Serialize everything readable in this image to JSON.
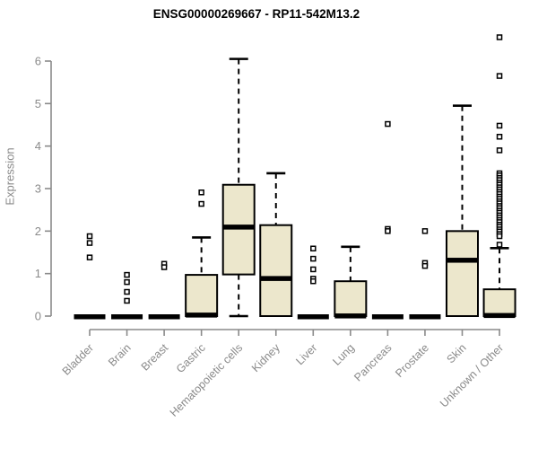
{
  "window": {
    "background": "#ffffff"
  },
  "chart_data": {
    "type": "boxplot",
    "title": "ENSG00000269667 - RP11-542M13.2",
    "ylabel": "Expression",
    "xlabel": "",
    "grid": false,
    "legend": null,
    "y_axis": {
      "min": 0,
      "max": 6,
      "ticks": [
        0,
        1,
        2,
        3,
        4,
        5,
        6
      ]
    },
    "categories": [
      "Bladder",
      "Brain",
      "Breast",
      "Gastric",
      "Hematopoietic cells",
      "Kidney",
      "Liver",
      "Lung",
      "Pancreas",
      "Prostate",
      "Skin",
      "Unknown / Other"
    ],
    "boxes": [
      {
        "category": "Bladder",
        "low": 0,
        "q1": 0,
        "median": 0,
        "q3": 0,
        "high": 0,
        "outliers": [
          1.88,
          1.72,
          1.38
        ]
      },
      {
        "category": "Brain",
        "low": 0,
        "q1": 0,
        "median": 0,
        "q3": 0,
        "high": 0,
        "outliers": [
          0.97,
          0.8,
          0.57,
          0.36
        ]
      },
      {
        "category": "Breast",
        "low": 0,
        "q1": 0,
        "median": 0,
        "q3": 0,
        "high": 0,
        "outliers": [
          1.23,
          1.15
        ]
      },
      {
        "category": "Gastric",
        "low": 0,
        "q1": 0,
        "median": 0.04,
        "q3": 0.97,
        "high": 1.85,
        "outliers": [
          2.91,
          2.64
        ]
      },
      {
        "category": "Hematopoietic cells",
        "low": 0,
        "q1": 0.98,
        "median": 2.11,
        "q3": 3.09,
        "high": 6.05,
        "outliers": []
      },
      {
        "category": "Kidney",
        "low": 0,
        "q1": 0,
        "median": 0.9,
        "q3": 2.14,
        "high": 3.36,
        "outliers": []
      },
      {
        "category": "Liver",
        "low": 0,
        "q1": 0,
        "median": 0,
        "q3": 0,
        "high": 0,
        "outliers": [
          1.59,
          1.35,
          1.1,
          0.88,
          0.82
        ]
      },
      {
        "category": "Lung",
        "low": 0,
        "q1": 0,
        "median": 0.02,
        "q3": 0.82,
        "high": 1.63,
        "outliers": []
      },
      {
        "category": "Pancreas",
        "low": 0,
        "q1": 0,
        "median": 0,
        "q3": 0,
        "high": 0,
        "outliers": [
          4.52,
          2.05,
          2.0
        ]
      },
      {
        "category": "Prostate",
        "low": 0,
        "q1": 0,
        "median": 0,
        "q3": 0,
        "high": 0,
        "outliers": [
          2.0,
          1.25,
          1.18
        ]
      },
      {
        "category": "Skin",
        "low": 0,
        "q1": 0,
        "median": 1.33,
        "q3": 2.0,
        "high": 4.95,
        "outliers": []
      },
      {
        "category": "Unknown / Other",
        "low": 0,
        "q1": 0,
        "median": 0.03,
        "q3": 0.63,
        "high": 1.6,
        "outliers": [
          6.56,
          5.65,
          4.48,
          4.22,
          3.9,
          3.36,
          3.31,
          3.25,
          3.2,
          3.14,
          3.09,
          3.03,
          2.98,
          2.92,
          2.87,
          2.81,
          2.76,
          2.7,
          2.65,
          2.59,
          2.54,
          2.48,
          2.43,
          2.37,
          2.32,
          2.26,
          2.21,
          2.15,
          2.1,
          2.04,
          1.99,
          1.93,
          1.88,
          1.68
        ]
      }
    ],
    "colors": {
      "box_fill": "#ECE7CC",
      "box_border": "#000000",
      "median": "#000000",
      "whisker": "#000000",
      "outlier_border": "#000000",
      "outlier_fill": "#ffffff",
      "axis": "#8a8a8a",
      "axis_text": "#8a8a8a",
      "title": "#000000"
    }
  }
}
